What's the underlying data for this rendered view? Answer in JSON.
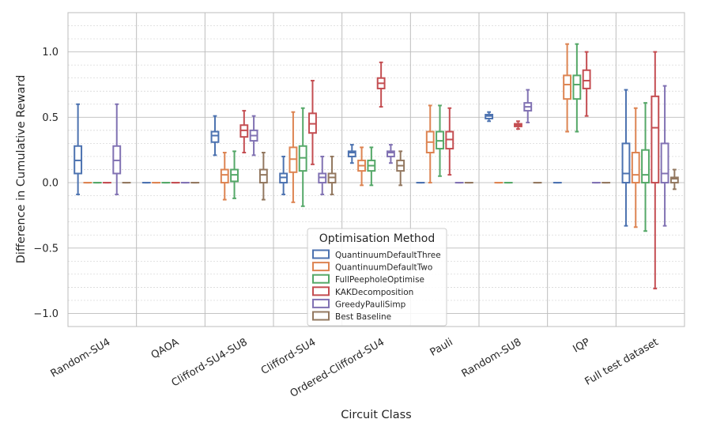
{
  "chart_data": {
    "type": "boxplot",
    "xlabel": "Circuit Class",
    "ylabel": "Difference in Cumulative Reward",
    "ylim": [
      -1.1,
      1.3
    ],
    "yticks": [
      -1.0,
      -0.5,
      0.0,
      0.5,
      1.0
    ],
    "ytick_labels": [
      "−1.0",
      "−0.5",
      "0.0",
      "0.5",
      "1.0"
    ],
    "minor_grid_step": 0.1,
    "grid": true,
    "legend": {
      "title": "Optimisation Method",
      "location": "lower-center",
      "entries": [
        "QuantinuumDefaultThree",
        "QuantinuumDefaultTwo",
        "FullPeepholeOptimise",
        "KAKDecomposition",
        "GreedyPauliSimp",
        "Best Baseline"
      ]
    },
    "series_colors": [
      "#4c72b0",
      "#dd8452",
      "#55a868",
      "#c44e52",
      "#8172b3",
      "#937860"
    ],
    "categories": [
      "Random-SU4",
      "QAOA",
      "Clifford-SU4-SU8",
      "Clifford-SU4",
      "Ordered-Clifford-SU4",
      "Pauli",
      "Random-SU8",
      "IQP",
      "Full test dataset"
    ],
    "boxes": [
      [
        [
          -0.09,
          0.07,
          0.17,
          0.28,
          0.6
        ],
        [
          0,
          0,
          0,
          0,
          0
        ],
        [
          0,
          0,
          0,
          0,
          0
        ],
        [
          0,
          0,
          0,
          0,
          0
        ],
        [
          -0.09,
          0.07,
          0.17,
          0.28,
          0.6
        ],
        [
          0,
          0,
          0,
          0,
          0
        ]
      ],
      [
        [
          0,
          0,
          0,
          0,
          0
        ],
        [
          0,
          0,
          0,
          0,
          0
        ],
        [
          0,
          0,
          0,
          0,
          0
        ],
        [
          0,
          0,
          0,
          0,
          0
        ],
        [
          0,
          0,
          0,
          0,
          0
        ],
        [
          0,
          0,
          0,
          0,
          0
        ]
      ],
      [
        [
          0.21,
          0.31,
          0.36,
          0.39,
          0.51
        ],
        [
          -0.13,
          0.0,
          0.06,
          0.1,
          0.23
        ],
        [
          -0.12,
          0.01,
          0.06,
          0.1,
          0.24
        ],
        [
          0.23,
          0.35,
          0.4,
          0.44,
          0.55
        ],
        [
          0.21,
          0.32,
          0.36,
          0.4,
          0.51
        ],
        [
          -0.13,
          0.0,
          0.06,
          0.1,
          0.23
        ]
      ],
      [
        [
          -0.09,
          0.0,
          0.04,
          0.07,
          0.2
        ],
        [
          -0.15,
          0.08,
          0.18,
          0.27,
          0.54
        ],
        [
          -0.18,
          0.09,
          0.19,
          0.28,
          0.57
        ],
        [
          0.14,
          0.38,
          0.45,
          0.53,
          0.78
        ],
        [
          -0.09,
          0.0,
          0.04,
          0.07,
          0.2
        ],
        [
          -0.09,
          0.0,
          0.04,
          0.07,
          0.2
        ]
      ],
      [
        [
          0.15,
          0.2,
          0.23,
          0.24,
          0.29
        ],
        [
          -0.02,
          0.09,
          0.13,
          0.17,
          0.27
        ],
        [
          -0.02,
          0.09,
          0.13,
          0.17,
          0.27
        ],
        [
          0.58,
          0.72,
          0.76,
          0.8,
          0.92
        ],
        [
          0.15,
          0.2,
          0.23,
          0.24,
          0.29
        ],
        [
          -0.02,
          0.09,
          0.13,
          0.17,
          0.24
        ]
      ],
      [
        [
          0,
          0,
          0,
          0,
          0
        ],
        [
          0.0,
          0.23,
          0.31,
          0.39,
          0.59
        ],
        [
          0.05,
          0.26,
          0.32,
          0.39,
          0.59
        ],
        [
          0.06,
          0.26,
          0.33,
          0.39,
          0.57
        ],
        [
          0,
          0,
          0,
          0,
          0
        ],
        [
          0,
          0,
          0,
          0,
          0
        ]
      ],
      [
        [
          0.47,
          0.49,
          0.51,
          0.52,
          0.54
        ],
        [
          0,
          0,
          0,
          0,
          0
        ],
        [
          0,
          0,
          0,
          0,
          0
        ],
        [
          0.41,
          0.43,
          0.44,
          0.45,
          0.47
        ],
        [
          0.46,
          0.55,
          0.58,
          0.61,
          0.71
        ],
        [
          0,
          0,
          0,
          0,
          0
        ]
      ],
      [
        [
          0,
          0,
          0,
          0,
          0
        ],
        [
          0.39,
          0.64,
          0.75,
          0.82,
          1.06
        ],
        [
          0.39,
          0.64,
          0.75,
          0.82,
          1.06
        ],
        [
          0.51,
          0.72,
          0.78,
          0.86,
          1.0
        ],
        [
          0,
          0,
          0,
          0,
          0
        ],
        [
          0,
          0,
          0,
          0,
          0
        ]
      ],
      [
        [
          -0.33,
          0.0,
          0.07,
          0.3,
          0.71
        ],
        [
          -0.34,
          0.0,
          0.06,
          0.23,
          0.57
        ],
        [
          -0.37,
          0.0,
          0.06,
          0.25,
          0.61
        ],
        [
          -0.81,
          0.0,
          0.42,
          0.66,
          1.0
        ],
        [
          -0.33,
          0.0,
          0.07,
          0.3,
          0.74
        ],
        [
          -0.05,
          0.0,
          0.03,
          0.04,
          0.1
        ]
      ]
    ]
  }
}
